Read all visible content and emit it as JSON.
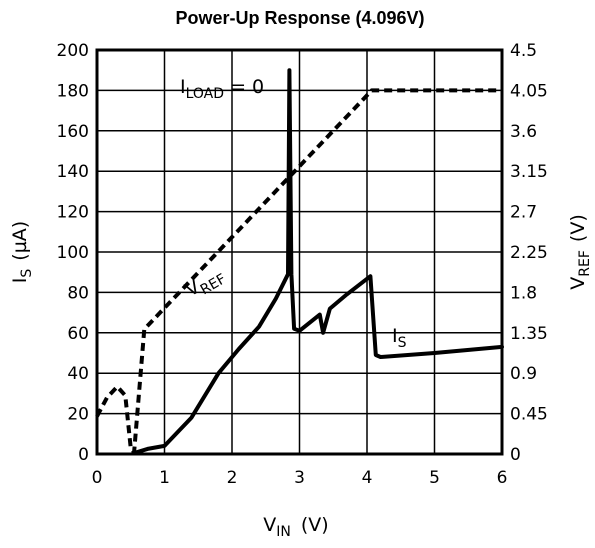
{
  "chart_data": {
    "type": "line",
    "title": "Power-Up Response (4.096V)",
    "xlabel": {
      "main": "V",
      "sub": "IN",
      "unit": "(V)"
    },
    "ylabel_left": {
      "main": "I",
      "sub": "S",
      "unit": "(µA)"
    },
    "ylabel_right": {
      "main": "V",
      "sub": "REF",
      "unit": "(V)"
    },
    "xlim": [
      0,
      6
    ],
    "ylim_left": [
      0,
      200
    ],
    "ylim_right": [
      0,
      4.5
    ],
    "x_ticks": [
      "0",
      "1",
      "2",
      "3",
      "4",
      "5",
      "6"
    ],
    "y_left_ticks": [
      "0",
      "20",
      "40",
      "60",
      "80",
      "100",
      "120",
      "140",
      "160",
      "180",
      "200"
    ],
    "y_right_ticks": [
      "0",
      "0.45",
      "0.9",
      "1.35",
      "1.8",
      "2.25",
      "2.7",
      "3.15",
      "3.6",
      "4.05",
      "4.5"
    ],
    "grid": true,
    "annotations": {
      "iload": {
        "main": "I",
        "sub": "LOAD",
        "rest": " = 0"
      },
      "vref": {
        "main": "V",
        "sub": "REF"
      },
      "is": {
        "main": "I",
        "sub": "S"
      }
    },
    "series": [
      {
        "axis": "right",
        "style": "dashed",
        "points": [
          [
            0,
            0.42
          ],
          [
            0.15,
            0.63
          ],
          [
            0.3,
            0.75
          ],
          [
            0.42,
            0.65
          ],
          [
            0.5,
            0.06
          ],
          [
            0.55,
            0.02
          ],
          [
            0.62,
            0.65
          ],
          [
            0.7,
            1.39
          ],
          [
            4.07,
            4.05
          ],
          [
            6.0,
            4.05
          ]
        ]
      },
      {
        "axis": "left",
        "style": "solid",
        "points": [
          [
            0.55,
            0.5
          ],
          [
            0.75,
            2.5
          ],
          [
            1.0,
            4
          ],
          [
            1.4,
            18
          ],
          [
            1.8,
            40
          ],
          [
            2.1,
            52
          ],
          [
            2.4,
            63
          ],
          [
            2.65,
            77
          ],
          [
            2.83,
            89
          ],
          [
            2.85,
            190
          ],
          [
            2.88,
            89
          ],
          [
            2.92,
            62
          ],
          [
            3.0,
            61
          ],
          [
            3.3,
            69
          ],
          [
            3.35,
            60
          ],
          [
            3.45,
            72
          ],
          [
            3.7,
            79
          ],
          [
            4.05,
            88
          ],
          [
            4.13,
            49
          ],
          [
            4.2,
            48
          ],
          [
            5.0,
            50
          ],
          [
            6.0,
            53
          ]
        ]
      }
    ]
  }
}
